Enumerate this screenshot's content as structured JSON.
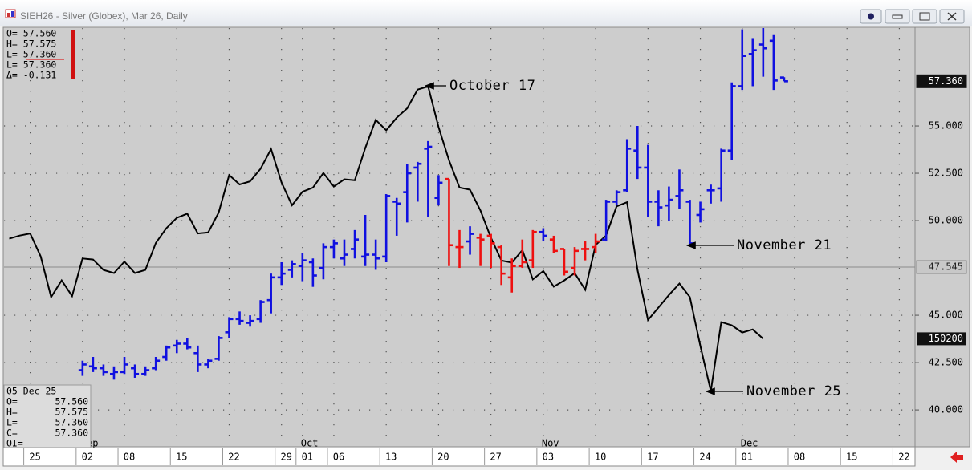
{
  "chart_data": {
    "type": "ohlc",
    "title": "SIEH26 - Silver (Globex), Mar 26, Daily",
    "categories": [
      null,
      null,
      "25",
      null,
      null,
      null,
      null,
      "02",
      null,
      null,
      null,
      "08",
      null,
      null,
      null,
      null,
      "15",
      null,
      null,
      null,
      null,
      "22",
      null,
      null,
      null,
      null,
      "29",
      null,
      "01",
      null,
      null,
      "06",
      null,
      null,
      null,
      null,
      "13",
      null,
      null,
      null,
      null,
      "20",
      null,
      null,
      null,
      null,
      "27",
      null,
      null,
      null,
      null,
      "03",
      null,
      null,
      null,
      null,
      "10",
      null,
      null,
      null,
      null,
      "17",
      null,
      null,
      null,
      null,
      "24",
      null,
      null,
      null,
      "01",
      null,
      null,
      null,
      null,
      "08",
      null,
      null,
      null,
      null,
      "15",
      null,
      null,
      null,
      null,
      "22",
      null
    ],
    "month_labels": [
      null,
      null,
      null,
      null,
      null,
      null,
      null,
      "Sep",
      null,
      null,
      null,
      null,
      null,
      null,
      null,
      null,
      null,
      null,
      null,
      null,
      null,
      null,
      null,
      null,
      null,
      null,
      null,
      null,
      "Oct",
      null,
      null,
      null,
      null,
      null,
      null,
      null,
      null,
      null,
      null,
      null,
      null,
      null,
      null,
      null,
      null,
      null,
      null,
      null,
      null,
      null,
      null,
      "Nov",
      null,
      null,
      null,
      null,
      null,
      null,
      null,
      null,
      null,
      null,
      null,
      null,
      null,
      null,
      null,
      null,
      null,
      null,
      "Dec",
      null,
      null,
      null,
      null,
      null,
      null,
      null,
      null,
      null,
      null,
      null,
      null,
      null,
      null,
      null,
      null
    ],
    "ohlc": {
      "open": [
        null,
        null,
        null,
        null,
        null,
        null,
        null,
        42.1,
        42.3,
        42.2,
        41.9,
        42.0,
        42.2,
        41.9,
        42.2,
        42.8,
        43.4,
        43.5,
        43.0,
        42.4,
        42.7,
        44.1,
        44.8,
        44.6,
        44.8,
        45.8,
        47.0,
        47.4,
        47.6,
        47.8,
        47.5,
        48.6,
        48.0,
        48.5,
        48.1,
        48.2,
        48.1,
        51.0,
        51.5,
        52.8,
        53.8,
        51.2,
        52.2,
        48.6,
        48.9,
        49.1,
        49.2,
        48.6,
        47.0,
        47.6,
        47.9,
        49.4,
        49.0,
        48.5,
        47.5,
        48.5,
        48.6,
        49.0,
        51.0,
        51.6,
        53.7,
        52.8,
        51.0,
        50.8,
        51.3,
        51.0,
        50.3,
        51.6,
        51.7,
        53.7,
        57.1,
        58.8,
        59.3,
        59.5,
        57.56,
        null,
        null,
        null,
        null,
        null,
        null,
        null,
        null,
        null,
        null,
        null,
        null
      ],
      "high": [
        null,
        null,
        null,
        null,
        null,
        null,
        null,
        42.6,
        42.8,
        42.4,
        42.3,
        42.8,
        42.4,
        42.3,
        42.8,
        43.4,
        43.7,
        43.8,
        43.4,
        42.7,
        43.9,
        44.9,
        45.2,
        45.0,
        45.8,
        47.2,
        47.8,
        47.9,
        48.3,
        48.0,
        48.8,
        49.0,
        49.0,
        49.5,
        50.3,
        49.0,
        51.4,
        51.2,
        53.0,
        53.1,
        54.2,
        52.4,
        52.2,
        49.5,
        49.7,
        49.3,
        49.3,
        48.7,
        48.0,
        49.0,
        49.5,
        49.6,
        49.2,
        48.5,
        48.6,
        48.9,
        49.3,
        51.1,
        51.6,
        54.3,
        55.0,
        54.0,
        51.6,
        51.8,
        52.7,
        51.1,
        51.0,
        51.9,
        53.8,
        57.3,
        60.1,
        59.6,
        60.2,
        59.8,
        57.575,
        null,
        null,
        null,
        null,
        null,
        null,
        null,
        null,
        null,
        null,
        null,
        null
      ],
      "low": [
        null,
        null,
        null,
        null,
        null,
        null,
        null,
        41.8,
        42.0,
        41.8,
        41.6,
        41.9,
        41.7,
        41.8,
        42.1,
        42.6,
        43.0,
        43.2,
        42.0,
        42.2,
        42.6,
        43.8,
        44.5,
        44.4,
        44.6,
        45.1,
        46.6,
        47.0,
        46.8,
        46.5,
        46.9,
        48.0,
        47.6,
        48.0,
        47.6,
        47.4,
        47.8,
        49.2,
        49.9,
        51.0,
        50.2,
        50.8,
        47.6,
        47.5,
        48.2,
        47.6,
        47.5,
        46.6,
        46.2,
        47.5,
        47.5,
        48.9,
        48.3,
        47.1,
        47.1,
        47.9,
        48.3,
        48.9,
        50.8,
        51.5,
        52.2,
        50.2,
        49.7,
        50.0,
        50.6,
        48.7,
        49.9,
        50.9,
        51.0,
        53.2,
        56.9,
        57.1,
        57.6,
        56.9,
        57.36,
        null,
        null,
        null,
        null,
        null,
        null,
        null,
        null,
        null,
        null,
        null,
        null
      ],
      "close": [
        null,
        null,
        null,
        null,
        null,
        null,
        null,
        42.4,
        42.2,
        42.0,
        42.0,
        42.4,
        41.9,
        42.1,
        42.6,
        43.3,
        43.5,
        43.3,
        42.4,
        42.6,
        43.8,
        44.8,
        44.7,
        44.7,
        45.7,
        47.0,
        47.2,
        47.7,
        47.9,
        47.1,
        48.6,
        48.8,
        48.2,
        49.0,
        48.2,
        48.0,
        51.3,
        50.9,
        52.5,
        53.0,
        53.9,
        52.0,
        48.7,
        48.6,
        49.3,
        49.0,
        48.8,
        47.2,
        47.6,
        47.8,
        49.4,
        49.2,
        48.4,
        47.3,
        48.4,
        48.5,
        48.9,
        51.0,
        51.5,
        53.8,
        52.8,
        51.0,
        50.7,
        51.1,
        51.6,
        48.8,
        50.6,
        51.6,
        53.7,
        57.1,
        58.7,
        59.0,
        59.1,
        57.4,
        57.36,
        null,
        null,
        null,
        null,
        null,
        null,
        null,
        null,
        null,
        null,
        null,
        null
      ],
      "colors": [
        null,
        null,
        null,
        null,
        null,
        null,
        null,
        "#1010e0",
        "#1010e0",
        "#1010e0",
        "#1010e0",
        "#1010e0",
        "#1010e0",
        "#1010e0",
        "#1010e0",
        "#1010e0",
        "#1010e0",
        "#1010e0",
        "#1010e0",
        "#1010e0",
        "#1010e0",
        "#1010e0",
        "#1010e0",
        "#1010e0",
        "#1010e0",
        "#1010e0",
        "#1010e0",
        "#1010e0",
        "#1010e0",
        "#1010e0",
        "#1010e0",
        "#1010e0",
        "#1010e0",
        "#1010e0",
        "#1010e0",
        "#1010e0",
        "#1010e0",
        "#1010e0",
        "#1010e0",
        "#1010e0",
        "#1010e0",
        "#1010e0",
        "#ee1010",
        "#ee1010",
        "#1010e0",
        "#ee1010",
        "#ee1010",
        "#ee1010",
        "#ee1010",
        "#ee1010",
        "#ee1010",
        "#1010e0",
        "#ee1010",
        "#ee1010",
        "#ee1010",
        "#ee1010",
        "#ee1010",
        "#1010e0",
        "#1010e0",
        "#1010e0",
        "#1010e0",
        "#1010e0",
        "#1010e0",
        "#1010e0",
        "#1010e0",
        "#1010e0",
        "#1010e0",
        "#1010e0",
        "#1010e0",
        "#1010e0",
        "#1010e0",
        "#1010e0",
        "#1010e0",
        "#1010e0",
        "#1010e0",
        null,
        null,
        null,
        null,
        null,
        null,
        null,
        null,
        null,
        null,
        null,
        null
      ]
    },
    "open_interest": {
      "color": "#000000",
      "axis": "y2",
      "values": [
        159800,
        160100,
        160300,
        158100,
        154200,
        155800,
        154300,
        157900,
        157800,
        156800,
        156500,
        157600,
        156500,
        156800,
        159400,
        160800,
        161800,
        162200,
        160300,
        160400,
        162300,
        165900,
        165000,
        165300,
        166500,
        168400,
        165200,
        163000,
        164300,
        164700,
        166100,
        164800,
        165500,
        165400,
        168500,
        171200,
        170200,
        171400,
        172300,
        174100,
        174400,
        170500,
        167300,
        164700,
        164500,
        162500,
        159900,
        157700,
        157500,
        158700,
        155900,
        156700,
        155200,
        155800,
        156500,
        154900,
        159200,
        160100,
        162900,
        163300,
        156800,
        152000,
        153200,
        154400,
        155500,
        154200,
        149500,
        145200,
        151800,
        151500,
        150800,
        151100,
        150200,
        null,
        null,
        null,
        null,
        null,
        null,
        null,
        null,
        null,
        null,
        null,
        null,
        null,
        null
      ]
    },
    "ylim": [
      38.14,
      60.17
    ],
    "yticks": [
      {
        "value": 40,
        "label": "40.000"
      },
      {
        "value": 42.5,
        "label": "42.500"
      },
      {
        "value": 45,
        "label": "45.000"
      },
      {
        "value": 50,
        "label": "50.000"
      },
      {
        "value": 52.5,
        "label": "52.500"
      },
      {
        "value": 55,
        "label": "55.000"
      }
    ],
    "y2lim": [
      140000,
      180000
    ],
    "grid": true,
    "axis_markers": [
      {
        "value": 57.36,
        "label": "57.360",
        "style": "last"
      },
      {
        "value": 47.545,
        "label": "47.545",
        "style": "cursor"
      }
    ],
    "annotations": [
      "October 17",
      "November 21",
      "November 25"
    ],
    "quote_box": [
      "O= 57.560",
      "H= 57.575",
      "L= 57.360",
      "L= 57.360",
      "Δ= -0.131"
    ],
    "data_box": {
      "date": "05 Dec 25",
      "rows": [
        [
          "O=",
          "57.560"
        ],
        [
          "H=",
          "57.575"
        ],
        [
          "L=",
          "57.360"
        ],
        [
          "C=",
          "57.360"
        ],
        [
          "OI="
        ]
      ]
    }
  }
}
